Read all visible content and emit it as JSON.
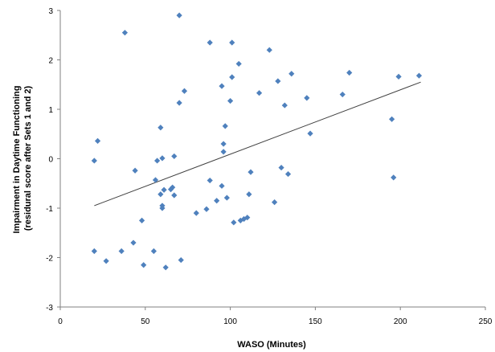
{
  "chart_data": {
    "type": "scatter",
    "title": "",
    "xlabel": "WASO (Minutes)",
    "ylabel": [
      "Impairment in Daytime Functioning",
      "(residural score after Sets 1 and 2)"
    ],
    "xlim": [
      0,
      250
    ],
    "ylim": [
      -3,
      3
    ],
    "xticks": [
      0,
      50,
      100,
      150,
      200,
      250
    ],
    "yticks": [
      -3,
      -2,
      -1,
      0,
      1,
      2,
      3
    ],
    "grid": false,
    "legend": "none",
    "marker_color": "#4f81bd",
    "trendline_color": "#404040",
    "trendline": {
      "x": [
        20,
        212
      ],
      "y": [
        -0.95,
        1.55
      ]
    },
    "series": [
      {
        "x": [
          70,
          38,
          88,
          101,
          105,
          123,
          101,
          136,
          117,
          95,
          128,
          96,
          70,
          73,
          132,
          145,
          166,
          170,
          199,
          211,
          59,
          100,
          147,
          96,
          97,
          22,
          20,
          44,
          57,
          60,
          67,
          112,
          130,
          56,
          88,
          134,
          59,
          61,
          65,
          66,
          60,
          95,
          67,
          98,
          92,
          102,
          106,
          110,
          126,
          111,
          108,
          195,
          196,
          86,
          80,
          60,
          48,
          43,
          36,
          20,
          27,
          49,
          55,
          62,
          71
        ],
        "y": [
          2.9,
          2.55,
          2.35,
          2.35,
          1.92,
          2.2,
          1.65,
          1.72,
          1.33,
          1.47,
          1.57,
          0.3,
          1.13,
          1.37,
          1.08,
          1.23,
          1.3,
          1.74,
          1.66,
          1.68,
          0.63,
          1.17,
          0.51,
          0.14,
          0.66,
          0.36,
          -0.04,
          -0.24,
          -0.04,
          0.01,
          0.05,
          -0.27,
          -0.18,
          -0.43,
          -0.44,
          -0.31,
          -0.72,
          -0.63,
          -0.62,
          -0.58,
          -0.95,
          -0.55,
          -0.74,
          -0.79,
          -0.85,
          -1.29,
          -1.25,
          -1.19,
          -0.88,
          -0.72,
          -1.22,
          0.8,
          -0.38,
          -1.02,
          -1.1,
          -1.0,
          -1.25,
          -1.7,
          -1.87,
          -1.87,
          -2.07,
          -2.15,
          -1.87,
          -2.2,
          -2.05
        ]
      }
    ]
  }
}
